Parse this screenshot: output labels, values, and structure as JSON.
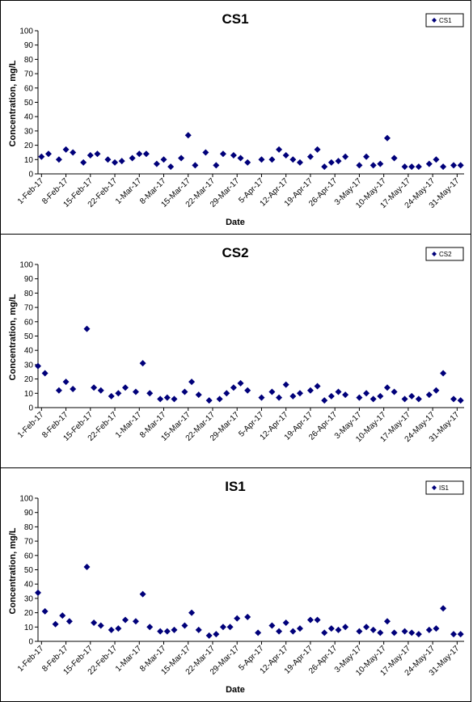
{
  "chart_data": [
    {
      "type": "scatter",
      "title": "CS1",
      "xlabel": "Date",
      "ylabel": "Concentration, mg/L",
      "ylim": [
        0,
        100
      ],
      "yticks": [
        "0",
        "10",
        "20",
        "30",
        "40",
        "50",
        "60",
        "70",
        "80",
        "90",
        "100"
      ],
      "xticks": [
        "1-Feb-17",
        "8-Feb-17",
        "15-Feb-17",
        "22-Feb-17",
        "1-Mar-17",
        "8-Mar-17",
        "15-Mar-17",
        "22-Mar-17",
        "29-Mar-17",
        "5-Apr-17",
        "12-Apr-17",
        "19-Apr-17",
        "26-Apr-17",
        "3-May-17",
        "10-May-17",
        "17-May-17",
        "24-May-17",
        "31-May-17"
      ],
      "legend": "top-right",
      "grid": false,
      "color": "#00007A",
      "series": [
        {
          "name": "CS1",
          "points": [
            [
              "2017-02-01",
              12
            ],
            [
              "2017-02-03",
              14
            ],
            [
              "2017-02-06",
              10
            ],
            [
              "2017-02-08",
              17
            ],
            [
              "2017-02-10",
              15
            ],
            [
              "2017-02-13",
              8
            ],
            [
              "2017-02-15",
              13
            ],
            [
              "2017-02-17",
              14
            ],
            [
              "2017-02-20",
              10
            ],
            [
              "2017-02-22",
              8
            ],
            [
              "2017-02-24",
              9
            ],
            [
              "2017-02-27",
              11
            ],
            [
              "2017-03-01",
              14
            ],
            [
              "2017-03-03",
              14
            ],
            [
              "2017-03-06",
              7
            ],
            [
              "2017-03-08",
              10
            ],
            [
              "2017-03-10",
              5
            ],
            [
              "2017-03-13",
              11
            ],
            [
              "2017-03-15",
              27
            ],
            [
              "2017-03-17",
              6
            ],
            [
              "2017-03-20",
              15
            ],
            [
              "2017-03-23",
              6
            ],
            [
              "2017-03-25",
              14
            ],
            [
              "2017-03-28",
              13
            ],
            [
              "2017-03-30",
              11
            ],
            [
              "2017-04-01",
              8
            ],
            [
              "2017-04-05",
              10
            ],
            [
              "2017-04-08",
              10
            ],
            [
              "2017-04-10",
              17
            ],
            [
              "2017-04-12",
              13
            ],
            [
              "2017-04-14",
              10
            ],
            [
              "2017-04-16",
              8
            ],
            [
              "2017-04-19",
              12
            ],
            [
              "2017-04-21",
              17
            ],
            [
              "2017-04-23",
              5
            ],
            [
              "2017-04-25",
              8
            ],
            [
              "2017-04-27",
              9
            ],
            [
              "2017-04-29",
              12
            ],
            [
              "2017-05-03",
              6
            ],
            [
              "2017-05-05",
              12
            ],
            [
              "2017-05-07",
              6
            ],
            [
              "2017-05-09",
              7
            ],
            [
              "2017-05-11",
              25
            ],
            [
              "2017-05-13",
              11
            ],
            [
              "2017-05-16",
              5
            ],
            [
              "2017-05-18",
              5
            ],
            [
              "2017-05-20",
              5
            ],
            [
              "2017-05-23",
              7
            ],
            [
              "2017-05-25",
              10
            ],
            [
              "2017-05-27",
              5
            ],
            [
              "2017-05-30",
              6
            ],
            [
              "2017-06-01",
              6
            ]
          ]
        }
      ]
    },
    {
      "type": "scatter",
      "title": "CS2",
      "xlabel": "",
      "ylabel": "Concentration, mg/L",
      "ylim": [
        0,
        100
      ],
      "yticks": [
        "0",
        "10",
        "20",
        "30",
        "40",
        "50",
        "60",
        "70",
        "80",
        "90",
        "100"
      ],
      "xticks": [
        "1-Feb-17",
        "8-Feb-17",
        "15-Feb-17",
        "22-Feb-17",
        "1-Mar-17",
        "8-Mar-17",
        "15-Mar-17",
        "22-Mar-17",
        "29-Mar-17",
        "5-Apr-17",
        "12-Apr-17",
        "19-Apr-17",
        "26-Apr-17",
        "3-May-17",
        "10-May-17",
        "17-May-17",
        "24-May-17",
        "31-May-17"
      ],
      "legend": "top-right",
      "grid": false,
      "color": "#00007A",
      "series": [
        {
          "name": "CS2",
          "points": [
            [
              "2017-01-31",
              29
            ],
            [
              "2017-02-02",
              24
            ],
            [
              "2017-02-06",
              12
            ],
            [
              "2017-02-08",
              18
            ],
            [
              "2017-02-10",
              13
            ],
            [
              "2017-02-14",
              55
            ],
            [
              "2017-02-16",
              14
            ],
            [
              "2017-02-18",
              12
            ],
            [
              "2017-02-21",
              8
            ],
            [
              "2017-02-23",
              10
            ],
            [
              "2017-02-25",
              14
            ],
            [
              "2017-02-28",
              11
            ],
            [
              "2017-03-02",
              31
            ],
            [
              "2017-03-04",
              10
            ],
            [
              "2017-03-07",
              6
            ],
            [
              "2017-03-09",
              7
            ],
            [
              "2017-03-11",
              6
            ],
            [
              "2017-03-14",
              11
            ],
            [
              "2017-03-16",
              18
            ],
            [
              "2017-03-18",
              9
            ],
            [
              "2017-03-21",
              5
            ],
            [
              "2017-03-24",
              6
            ],
            [
              "2017-03-26",
              10
            ],
            [
              "2017-03-28",
              14
            ],
            [
              "2017-03-30",
              17
            ],
            [
              "2017-04-01",
              12
            ],
            [
              "2017-04-05",
              7
            ],
            [
              "2017-04-08",
              11
            ],
            [
              "2017-04-10",
              7
            ],
            [
              "2017-04-12",
              16
            ],
            [
              "2017-04-14",
              8
            ],
            [
              "2017-04-16",
              10
            ],
            [
              "2017-04-19",
              12
            ],
            [
              "2017-04-21",
              15
            ],
            [
              "2017-04-23",
              5
            ],
            [
              "2017-04-25",
              8
            ],
            [
              "2017-04-27",
              11
            ],
            [
              "2017-04-29",
              9
            ],
            [
              "2017-05-03",
              7
            ],
            [
              "2017-05-05",
              10
            ],
            [
              "2017-05-07",
              6
            ],
            [
              "2017-05-09",
              8
            ],
            [
              "2017-05-11",
              14
            ],
            [
              "2017-05-13",
              11
            ],
            [
              "2017-05-16",
              6
            ],
            [
              "2017-05-18",
              8
            ],
            [
              "2017-05-20",
              6
            ],
            [
              "2017-05-23",
              9
            ],
            [
              "2017-05-25",
              12
            ],
            [
              "2017-05-27",
              24
            ],
            [
              "2017-05-30",
              6
            ],
            [
              "2017-06-01",
              5
            ]
          ]
        }
      ]
    },
    {
      "type": "scatter",
      "title": "IS1",
      "xlabel": "Date",
      "ylabel": "Concentration, mg/L",
      "ylim": [
        0,
        100
      ],
      "yticks": [
        "0",
        "10",
        "20",
        "30",
        "40",
        "50",
        "60",
        "70",
        "80",
        "90",
        "100"
      ],
      "xticks": [
        "1-Feb-17",
        "8-Feb-17",
        "15-Feb-17",
        "22-Feb-17",
        "1-Mar-17",
        "8-Mar-17",
        "15-Mar-17",
        "22-Mar-17",
        "29-Mar-17",
        "5-Apr-17",
        "12-Apr-17",
        "19-Apr-17",
        "26-Apr-17",
        "3-May-17",
        "10-May-17",
        "17-May-17",
        "24-May-17",
        "31-May-17"
      ],
      "legend": "top-right",
      "grid": false,
      "color": "#00007A",
      "series": [
        {
          "name": "IS1",
          "points": [
            [
              "2017-01-31",
              34
            ],
            [
              "2017-02-02",
              21
            ],
            [
              "2017-02-05",
              12
            ],
            [
              "2017-02-07",
              18
            ],
            [
              "2017-02-09",
              14
            ],
            [
              "2017-02-14",
              52
            ],
            [
              "2017-02-16",
              13
            ],
            [
              "2017-02-18",
              11
            ],
            [
              "2017-02-21",
              8
            ],
            [
              "2017-02-23",
              9
            ],
            [
              "2017-02-25",
              15
            ],
            [
              "2017-02-28",
              14
            ],
            [
              "2017-03-02",
              33
            ],
            [
              "2017-03-04",
              10
            ],
            [
              "2017-03-07",
              7
            ],
            [
              "2017-03-09",
              7
            ],
            [
              "2017-03-11",
              8
            ],
            [
              "2017-03-14",
              11
            ],
            [
              "2017-03-16",
              20
            ],
            [
              "2017-03-18",
              8
            ],
            [
              "2017-03-21",
              4
            ],
            [
              "2017-03-23",
              5
            ],
            [
              "2017-03-25",
              10
            ],
            [
              "2017-03-27",
              10
            ],
            [
              "2017-03-29",
              16
            ],
            [
              "2017-04-01",
              17
            ],
            [
              "2017-04-04",
              6
            ],
            [
              "2017-04-08",
              11
            ],
            [
              "2017-04-10",
              7
            ],
            [
              "2017-04-12",
              13
            ],
            [
              "2017-04-14",
              7
            ],
            [
              "2017-04-16",
              9
            ],
            [
              "2017-04-19",
              15
            ],
            [
              "2017-04-21",
              15
            ],
            [
              "2017-04-23",
              6
            ],
            [
              "2017-04-25",
              9
            ],
            [
              "2017-04-27",
              8
            ],
            [
              "2017-04-29",
              10
            ],
            [
              "2017-05-03",
              7
            ],
            [
              "2017-05-05",
              10
            ],
            [
              "2017-05-07",
              8
            ],
            [
              "2017-05-09",
              6
            ],
            [
              "2017-05-11",
              14
            ],
            [
              "2017-05-13",
              6
            ],
            [
              "2017-05-16",
              7
            ],
            [
              "2017-05-18",
              6
            ],
            [
              "2017-05-20",
              5
            ],
            [
              "2017-05-23",
              8
            ],
            [
              "2017-05-25",
              9
            ],
            [
              "2017-05-27",
              23
            ],
            [
              "2017-05-30",
              5
            ],
            [
              "2017-06-01",
              5
            ]
          ]
        }
      ]
    }
  ]
}
